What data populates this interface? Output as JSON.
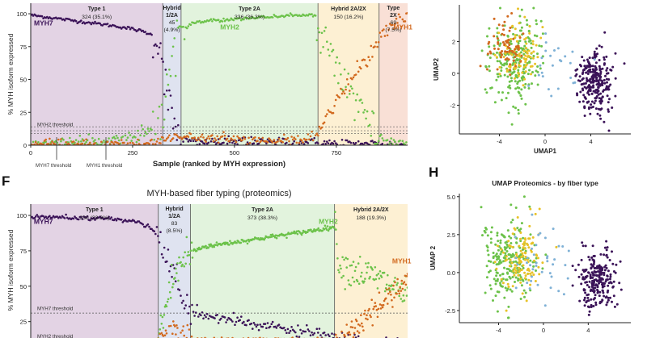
{
  "panel_labels": {
    "F": "F",
    "H": "H"
  },
  "colors": {
    "myh7": "#3b1358",
    "myh2": "#6cc24a",
    "myh1": "#d2691e",
    "type1_bg": "#e3d3e4",
    "hybrid12_bg": "#dfe3f0",
    "type2a_bg": "#e2f3dd",
    "hybrid2a2x_bg": "#fdf0d3",
    "type2x_bg": "#f9e0d6",
    "umap_yellow": "#e8c227",
    "umap_blue": "#7fb1d6"
  },
  "chart_data": [
    {
      "id": "transcriptomics-myh",
      "type": "scatter",
      "title": "",
      "xlabel": "Sample (ranked by MYH expression)",
      "ylabel": "% MYH isoform expressed",
      "xlim": [
        0,
        925
      ],
      "ylim": [
        0,
        108
      ],
      "xticks": [
        0,
        250,
        500,
        750
      ],
      "yticks": [
        0,
        25,
        50,
        75,
        100
      ],
      "regions": [
        {
          "key": "type1_bg",
          "x0": 0,
          "x1": 324,
          "name": "Type 1",
          "sub": "324 (35.1%)"
        },
        {
          "key": "hybrid12_bg",
          "x0": 324,
          "x1": 369,
          "name": "Hybrid 1/2A",
          "sub": "45 (4.9%)"
        },
        {
          "key": "type2a_bg",
          "x0": 369,
          "x1": 705,
          "name": "Type 2A",
          "sub": "336 (36.3%)"
        },
        {
          "key": "hybrid2a2x_bg",
          "x0": 705,
          "x1": 855,
          "name": "Hybrid 2A/2X",
          "sub": "150 (16.2%)"
        },
        {
          "key": "type2x_bg",
          "x0": 855,
          "x1": 925,
          "name": "Type 2X",
          "sub": "69 (7.5%)"
        }
      ],
      "thresholds": [
        {
          "label": "MYH2 threshold",
          "value": 14
        },
        {
          "label": "MYH7 threshold",
          "value": 11
        },
        {
          "label": "MYH1 threshold",
          "value": 9
        }
      ],
      "threshold_labels": {
        "myh2": "MYH2 threshold",
        "myh7": "MYH7 threshold",
        "myh1": "MYH1 threshold"
      },
      "series": [
        {
          "name": "MYH7",
          "color_key": "myh7",
          "points": [
            [
              0,
              99
            ],
            [
              50,
              97
            ],
            [
              100,
              95
            ],
            [
              150,
              93
            ],
            [
              200,
              91
            ],
            [
              240,
              89
            ],
            [
              270,
              87
            ],
            [
              290,
              85
            ],
            [
              305,
              82
            ],
            [
              315,
              78
            ],
            [
              322,
              72
            ],
            [
              328,
              55
            ],
            [
              334,
              40
            ],
            [
              340,
              30
            ],
            [
              348,
              20
            ],
            [
              355,
              12
            ],
            [
              365,
              6
            ],
            [
              400,
              3
            ],
            [
              500,
              2
            ],
            [
              600,
              2
            ],
            [
              700,
              2
            ],
            [
              760,
              1
            ],
            [
              850,
              1
            ],
            [
              925,
              0
            ]
          ]
        },
        {
          "name": "MYH2",
          "color_key": "myh2",
          "points": [
            [
              0,
              1
            ],
            [
              100,
              2
            ],
            [
              200,
              4
            ],
            [
              260,
              7
            ],
            [
              300,
              11
            ],
            [
              320,
              18
            ],
            [
              330,
              35
            ],
            [
              340,
              55
            ],
            [
              350,
              70
            ],
            [
              360,
              82
            ],
            [
              369,
              88
            ],
            [
              400,
              93
            ],
            [
              450,
              95
            ],
            [
              500,
              96
            ],
            [
              600,
              98
            ],
            [
              700,
              99
            ],
            [
              705,
              90
            ],
            [
              730,
              75
            ],
            [
              760,
              58
            ],
            [
              780,
              45
            ],
            [
              800,
              30
            ],
            [
              820,
              18
            ],
            [
              850,
              7
            ],
            [
              880,
              3
            ],
            [
              925,
              1
            ]
          ]
        },
        {
          "name": "MYH1",
          "color_key": "myh1",
          "points": [
            [
              0,
              0
            ],
            [
              300,
              1
            ],
            [
              330,
              4
            ],
            [
              360,
              8
            ],
            [
              400,
              6
            ],
            [
              500,
              4
            ],
            [
              600,
              3
            ],
            [
              700,
              5
            ],
            [
              705,
              10
            ],
            [
              730,
              22
            ],
            [
              760,
              38
            ],
            [
              790,
              52
            ],
            [
              820,
              65
            ],
            [
              850,
              78
            ],
            [
              880,
              90
            ],
            [
              925,
              100
            ]
          ]
        }
      ],
      "series_labels": [
        {
          "text": "MYH7",
          "color_key": "myh7",
          "x": 8,
          "y": 91
        },
        {
          "text": "MYH2",
          "color_key": "myh2",
          "x": 465,
          "y": 88
        },
        {
          "text": "MYH1",
          "color_key": "myh1",
          "x": 890,
          "y": 88
        }
      ]
    },
    {
      "id": "umap-transcriptomics",
      "type": "scatter",
      "title": "",
      "xlabel": "UMAP1",
      "ylabel": "UMAP2",
      "xlim": [
        -7.5,
        7.5
      ],
      "ylim": [
        -3.8,
        4.3
      ],
      "xticks": [
        -4,
        0,
        4
      ],
      "yticks": [
        -2,
        0,
        2
      ],
      "clusters": [
        {
          "label": "Type 1",
          "color_key": "myh7",
          "count": 260,
          "cx": 4.3,
          "cy": -0.6,
          "sx": 1.0,
          "sy": 1.3
        },
        {
          "label": "Type 2A",
          "color_key": "myh2",
          "count": 230,
          "cx": -2.5,
          "cy": 0.8,
          "sx": 1.5,
          "sy": 1.7
        },
        {
          "label": "Hybrid 2A/2X",
          "color_key": "umap_yellow",
          "count": 90,
          "cx": -2.4,
          "cy": 1.2,
          "sx": 1.2,
          "sy": 1.4
        },
        {
          "label": "Type 2X",
          "color_key": "myh1",
          "count": 70,
          "cx": -3.4,
          "cy": 1.5,
          "sx": 1.0,
          "sy": 1.2
        },
        {
          "label": "Hybrid 1/2A",
          "color_key": "umap_blue",
          "count": 25,
          "cx": 0.8,
          "cy": 0.8,
          "sx": 1.5,
          "sy": 1.4
        }
      ]
    },
    {
      "id": "proteomics-myh",
      "type": "scatter",
      "title": "MYH-based fiber typing (proteomics)",
      "xlabel": "",
      "ylabel": "% MYH isoform expressed",
      "xlim": [
        0,
        975
      ],
      "ylim": [
        10,
        108
      ],
      "yticks": [
        25,
        50,
        75,
        100
      ],
      "regions": [
        {
          "key": "type1_bg",
          "x0": 0,
          "x1": 330,
          "name": "Type 1",
          "sub": "330 (33.9%)"
        },
        {
          "key": "hybrid12_bg",
          "x0": 330,
          "x1": 413,
          "name": "Hybrid 1/2A",
          "sub": "83 (8.5%)"
        },
        {
          "key": "type2a_bg",
          "x0": 413,
          "x1": 786,
          "name": "Type 2A",
          "sub": "373 (38.3%)"
        },
        {
          "key": "hybrid2a2x_bg",
          "x0": 786,
          "x1": 975,
          "name": "Hybrid 2A/2X",
          "sub": "188 (19.3%)"
        }
      ],
      "thresholds": [
        {
          "label": "MYH7 threshold",
          "value": 31
        },
        {
          "label": "MYH2 threshold",
          "value": 12
        }
      ],
      "threshold_labels": {
        "myh7": "MYH7 threshold",
        "myh2": "MYH2 threshold"
      },
      "series": [
        {
          "name": "MYH7",
          "color_key": "myh7",
          "points": [
            [
              0,
              99
            ],
            [
              100,
              98.5
            ],
            [
              200,
              97.5
            ],
            [
              270,
              96
            ],
            [
              300,
              93
            ],
            [
              320,
              88
            ],
            [
              335,
              80
            ],
            [
              350,
              70
            ],
            [
              370,
              55
            ],
            [
              390,
              42
            ],
            [
              413,
              33
            ],
            [
              450,
              29
            ],
            [
              500,
              27
            ],
            [
              600,
              22
            ],
            [
              700,
              18
            ],
            [
              786,
              14
            ],
            [
              830,
              11
            ],
            [
              900,
              10
            ],
            [
              975,
              10
            ]
          ]
        },
        {
          "name": "MYH2",
          "color_key": "myh2",
          "points": [
            [
              330,
              15
            ],
            [
              345,
              30
            ],
            [
              360,
              48
            ],
            [
              380,
              62
            ],
            [
              400,
              70
            ],
            [
              413,
              74
            ],
            [
              450,
              78
            ],
            [
              500,
              80
            ],
            [
              600,
              84
            ],
            [
              700,
              88
            ],
            [
              786,
              92
            ],
            [
              800,
              65
            ],
            [
              830,
              62
            ],
            [
              870,
              58
            ],
            [
              900,
              55
            ],
            [
              950,
              48
            ],
            [
              975,
              42
            ]
          ]
        },
        {
          "name": "MYH1",
          "color_key": "myh1",
          "points": [
            [
              330,
              12
            ],
            [
              360,
              14
            ],
            [
              400,
              12
            ],
            [
              786,
              12
            ],
            [
              830,
              18
            ],
            [
              870,
              28
            ],
            [
              900,
              36
            ],
            [
              940,
              46
            ],
            [
              975,
              56
            ]
          ]
        }
      ],
      "series_labels": [
        {
          "text": "MYH7",
          "color_key": "myh7",
          "x": 8,
          "y": 94
        },
        {
          "text": "MYH2",
          "color_key": "myh2",
          "x": 745,
          "y": 94
        },
        {
          "text": "MYH1",
          "color_key": "myh1",
          "x": 935,
          "y": 66
        }
      ]
    },
    {
      "id": "umap-proteomics",
      "type": "scatter",
      "title": "UMAP Proteomics - by fiber type",
      "xlabel": "",
      "ylabel": "UMAP 2",
      "xlim": [
        -7.5,
        7.8
      ],
      "ylim": [
        -3.3,
        5.2
      ],
      "xticks": [
        -4,
        0,
        4
      ],
      "yticks": [
        -2.5,
        0.0,
        2.5,
        5.0
      ],
      "ytick_labels": [
        "-2.5",
        "0.0",
        "2.5",
        "5.0"
      ],
      "clusters": [
        {
          "label": "Type 1",
          "color_key": "myh7",
          "count": 230,
          "cx": 4.8,
          "cy": -0.5,
          "sx": 1.1,
          "sy": 1.2
        },
        {
          "label": "Type 2A",
          "color_key": "myh2",
          "count": 220,
          "cx": -3.0,
          "cy": 0.8,
          "sx": 1.7,
          "sy": 1.9
        },
        {
          "label": "Hybrid 2A/2X",
          "color_key": "umap_yellow",
          "count": 110,
          "cx": -2.0,
          "cy": 0.7,
          "sx": 1.1,
          "sy": 1.6
        },
        {
          "label": "Hybrid 1/2A",
          "color_key": "umap_blue",
          "count": 40,
          "cx": 0.0,
          "cy": 1.0,
          "sx": 1.8,
          "sy": 1.5
        }
      ]
    }
  ]
}
